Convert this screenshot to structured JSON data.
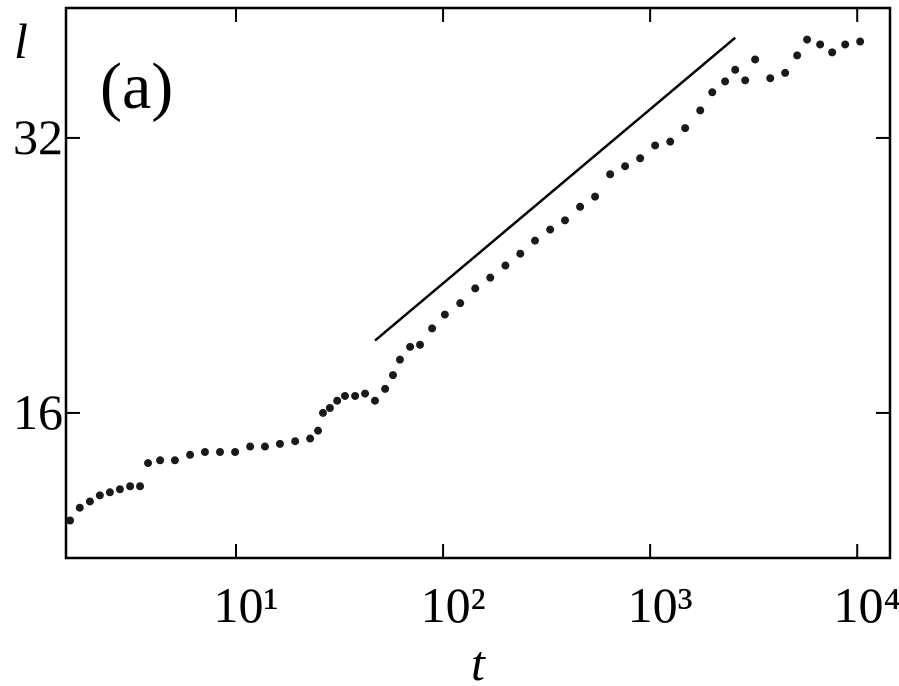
{
  "chart_data": {
    "type": "scatter",
    "annotation": "(a)",
    "xlabel": "t",
    "ylabel": "l",
    "xscale": "log",
    "yscale": "log",
    "xlim": [
      1.51,
      14400
    ],
    "ylim": [
      11.1,
      44.4
    ],
    "xticks": [
      {
        "value": 10,
        "label": "10¹"
      },
      {
        "value": 100,
        "label": "10²"
      },
      {
        "value": 1000,
        "label": "10³"
      },
      {
        "value": 10000,
        "label": "10⁴"
      }
    ],
    "yticks": [
      16,
      32
    ],
    "color": "#1a1a1a",
    "guide_line": {
      "x": [
        46.9,
        2576
      ],
      "y": [
        19.2,
        41.2
      ]
    },
    "x": [
      1.58,
      1.76,
      1.97,
      2.2,
      2.46,
      2.75,
      3.08,
      3.44,
      3.76,
      4.3,
      5.07,
      6.0,
      7.08,
      8.37,
      9.9,
      11.7,
      13.8,
      16.3,
      19.3,
      22.8,
      24.9,
      26.3,
      28.4,
      30.8,
      33.6,
      37.6,
      42.0,
      46.9,
      52.5,
      57.3,
      61.9,
      69.3,
      77.4,
      88.5,
      102,
      121,
      143,
      169,
      200,
      236,
      278,
      329,
      388,
      459,
      542,
      641,
      757,
      895,
      1057,
      1250,
      1476,
      1746,
      1995,
      2301,
      2576,
      2877,
      3214,
      3802,
      4487,
      5129,
      5728,
      6622,
      7568,
      8750,
      10330
    ],
    "values": [
      12.2,
      12.6,
      12.8,
      13.0,
      13.1,
      13.2,
      13.3,
      13.3,
      14.1,
      14.2,
      14.2,
      14.4,
      14.5,
      14.5,
      14.5,
      14.7,
      14.7,
      14.8,
      14.9,
      15.0,
      15.3,
      16.0,
      16.2,
      16.5,
      16.7,
      16.7,
      16.8,
      16.5,
      17.0,
      17.6,
      18.3,
      18.9,
      19.0,
      19.8,
      20.5,
      21.1,
      21.9,
      22.5,
      23.2,
      23.9,
      24.7,
      25.4,
      26.0,
      26.9,
      27.6,
      29.2,
      29.8,
      30.4,
      31.4,
      31.7,
      32.8,
      34.3,
      35.9,
      36.9,
      38.0,
      37.0,
      39.0,
      37.2,
      37.7,
      39.4,
      41.0,
      40.5,
      39.7,
      40.5,
      40.8
    ]
  }
}
